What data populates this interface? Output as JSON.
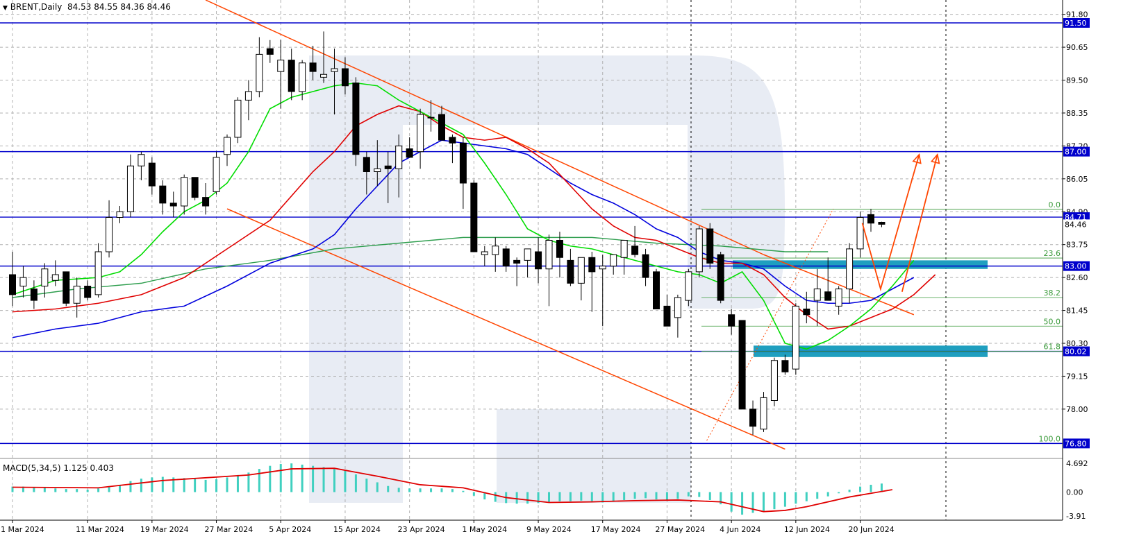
{
  "header": {
    "arrow": "▼",
    "symbol": "BRENT,Daily",
    "ohlc": "84.53 84.55 84.36 84.46"
  },
  "macd": {
    "label": "MACD(5,34,5) 1.125 0.403",
    "ticks": [
      "4.692",
      "0.00",
      "-3.91"
    ]
  },
  "price_ticks": [
    "91.80",
    "90.65",
    "89.50",
    "88.35",
    "87.20",
    "86.05",
    "84.90",
    "83.75",
    "82.60",
    "81.45",
    "80.30",
    "79.15",
    "78.00"
  ],
  "level_labels": [
    {
      "value": "91.50",
      "price": 91.5
    },
    {
      "value": "87.00",
      "price": 87.0
    },
    {
      "value": "84.71",
      "price": 84.71
    },
    {
      "value": "84.46",
      "price": 84.46
    },
    {
      "value": "83.00",
      "price": 83.0
    },
    {
      "value": "80.02",
      "price": 80.02
    },
    {
      "value": "76.80",
      "price": 76.8
    }
  ],
  "fib_labels": [
    {
      "text": "0.0",
      "price": 84.98
    },
    {
      "text": "23.6",
      "price": 83.28
    },
    {
      "text": "38.2",
      "price": 81.9
    },
    {
      "text": "50.0",
      "price": 80.9
    },
    {
      "text": "61.8",
      "price": 80.02
    },
    {
      "text": "100.0",
      "price": 76.8
    }
  ],
  "date_labels": [
    {
      "text": "1 Mar 2024",
      "idx": 0
    },
    {
      "text": "11 Mar 2024",
      "idx": 7
    },
    {
      "text": "19 Mar 2024",
      "idx": 13
    },
    {
      "text": "27 Mar 2024",
      "idx": 19
    },
    {
      "text": "5 Apr 2024",
      "idx": 25
    },
    {
      "text": "15 Apr 2024",
      "idx": 31
    },
    {
      "text": "23 Apr 2024",
      "idx": 37
    },
    {
      "text": "1 May 2024",
      "idx": 43
    },
    {
      "text": "9 May 2024",
      "idx": 49
    },
    {
      "text": "17 May 2024",
      "idx": 55
    },
    {
      "text": "27 May 2024",
      "idx": 61
    },
    {
      "text": "4 Jun 2024",
      "idx": 67
    },
    {
      "text": "12 Jun 2024",
      "idx": 73
    },
    {
      "text": "20 Jun 2024",
      "idx": 79
    }
  ],
  "colors": {
    "bull": "#ffffff",
    "bear": "#000000",
    "ma_green": "#00dd00",
    "ma_red": "#e00000",
    "ma_blue": "#0000dd",
    "ma_darkgreen": "#2e9e4e",
    "level": "#0000cc",
    "channel": "#ff4500",
    "zone": "#1f9fbf",
    "macd_hist": "#40d0c0",
    "macd_signal": "#e00000"
  },
  "chart_data": {
    "type": "candlestick",
    "ylim": [
      76.3,
      92.3
    ],
    "macd_ylim": [
      -4.6,
      5.4
    ],
    "candles": [
      [
        82.7,
        83.5,
        81.6,
        82.0
      ],
      [
        82.3,
        83.0,
        81.9,
        82.6
      ],
      [
        82.2,
        82.5,
        81.5,
        81.8
      ],
      [
        82.3,
        83.1,
        81.9,
        82.9
      ],
      [
        82.5,
        83.2,
        82.3,
        82.7
      ],
      [
        82.8,
        82.8,
        81.6,
        81.7
      ],
      [
        81.7,
        82.6,
        81.2,
        82.3
      ],
      [
        82.3,
        82.5,
        81.8,
        81.9
      ],
      [
        82.0,
        83.8,
        81.9,
        83.5
      ],
      [
        83.5,
        85.3,
        83.3,
        84.7
      ],
      [
        84.7,
        85.1,
        84.5,
        84.9
      ],
      [
        84.9,
        86.9,
        84.7,
        86.5
      ],
      [
        86.5,
        87.0,
        86.0,
        86.9
      ],
      [
        86.6,
        86.8,
        85.5,
        85.8
      ],
      [
        85.8,
        86.0,
        84.8,
        85.2
      ],
      [
        85.2,
        85.6,
        84.7,
        85.1
      ],
      [
        85.1,
        86.2,
        84.8,
        86.1
      ],
      [
        86.1,
        86.1,
        85.3,
        85.4
      ],
      [
        85.4,
        85.9,
        84.8,
        85.1
      ],
      [
        85.6,
        87.0,
        85.5,
        86.8
      ],
      [
        86.9,
        87.6,
        86.5,
        87.5
      ],
      [
        87.5,
        88.9,
        87.3,
        88.8
      ],
      [
        88.8,
        89.5,
        88.1,
        89.1
      ],
      [
        89.1,
        91.0,
        88.9,
        90.4
      ],
      [
        90.6,
        90.9,
        90.1,
        90.4
      ],
      [
        89.8,
        90.9,
        88.5,
        90.2
      ],
      [
        90.2,
        90.6,
        88.8,
        89.1
      ],
      [
        89.1,
        90.2,
        88.8,
        90.1
      ],
      [
        90.1,
        90.7,
        89.5,
        89.8
      ],
      [
        89.6,
        91.2,
        89.4,
        89.7
      ],
      [
        89.8,
        90.6,
        88.3,
        89.9
      ],
      [
        89.9,
        90.3,
        89.0,
        89.3
      ],
      [
        89.4,
        89.6,
        86.5,
        86.9
      ],
      [
        86.8,
        87.0,
        85.5,
        86.3
      ],
      [
        86.3,
        87.4,
        85.8,
        86.4
      ],
      [
        86.5,
        87.0,
        85.2,
        86.4
      ],
      [
        86.4,
        87.6,
        85.4,
        87.2
      ],
      [
        87.1,
        87.5,
        86.8,
        86.8
      ],
      [
        87.0,
        88.5,
        86.4,
        88.3
      ],
      [
        88.2,
        88.8,
        87.7,
        88.2
      ],
      [
        88.3,
        88.6,
        87.4,
        87.4
      ],
      [
        87.5,
        87.6,
        86.6,
        87.3
      ],
      [
        87.3,
        87.5,
        85.0,
        85.9
      ],
      [
        85.9,
        86.0,
        83.5,
        83.5
      ],
      [
        83.4,
        83.7,
        83.0,
        83.5
      ],
      [
        83.4,
        84.0,
        82.8,
        83.7
      ],
      [
        83.6,
        83.7,
        82.8,
        83.0
      ],
      [
        83.2,
        83.3,
        82.3,
        83.1
      ],
      [
        83.2,
        83.5,
        82.6,
        83.6
      ],
      [
        83.5,
        84.0,
        82.4,
        82.9
      ],
      [
        82.9,
        84.1,
        81.6,
        83.9
      ],
      [
        83.9,
        84.2,
        82.6,
        83.3
      ],
      [
        83.2,
        83.6,
        82.3,
        82.4
      ],
      [
        82.4,
        83.3,
        81.8,
        83.3
      ],
      [
        83.3,
        83.5,
        81.4,
        82.8
      ],
      [
        82.9,
        83.4,
        80.9,
        83.0
      ],
      [
        83.0,
        83.4,
        82.7,
        83.4
      ],
      [
        83.3,
        83.9,
        82.7,
        83.9
      ],
      [
        83.7,
        84.4,
        83.3,
        83.4
      ],
      [
        83.4,
        83.6,
        82.3,
        82.6
      ],
      [
        82.8,
        82.9,
        81.5,
        81.5
      ],
      [
        81.6,
        82.0,
        80.9,
        80.9
      ],
      [
        81.2,
        82.0,
        80.5,
        81.9
      ],
      [
        81.8,
        82.9,
        81.6,
        82.8
      ],
      [
        82.8,
        84.4,
        82.6,
        84.3
      ],
      [
        84.3,
        84.5,
        82.9,
        83.1
      ],
      [
        83.4,
        83.5,
        81.7,
        81.8
      ],
      [
        81.3,
        81.5,
        80.6,
        80.9
      ],
      [
        81.1,
        81.1,
        78.0,
        78.0
      ],
      [
        78.0,
        78.3,
        77.1,
        77.4
      ],
      [
        77.3,
        78.6,
        77.2,
        78.4
      ],
      [
        78.3,
        79.8,
        78.1,
        79.7
      ],
      [
        79.7,
        79.9,
        79.2,
        79.3
      ],
      [
        79.4,
        81.7,
        79.2,
        81.6
      ],
      [
        81.5,
        82.1,
        81.0,
        81.3
      ],
      [
        81.8,
        82.9,
        80.9,
        82.2
      ],
      [
        82.1,
        83.3,
        81.8,
        81.8
      ],
      [
        81.6,
        82.3,
        81.3,
        82.2
      ],
      [
        82.2,
        83.8,
        81.7,
        83.6
      ],
      [
        83.6,
        84.9,
        83.3,
        84.7
      ],
      [
        84.8,
        85.0,
        84.2,
        84.5
      ],
      [
        84.53,
        84.55,
        84.36,
        84.46
      ]
    ],
    "ma_green": [
      [
        0,
        82.0
      ],
      [
        4,
        82.5
      ],
      [
        8,
        82.6
      ],
      [
        10,
        82.8
      ],
      [
        12,
        83.4
      ],
      [
        14,
        84.2
      ],
      [
        16,
        84.9
      ],
      [
        18,
        85.3
      ],
      [
        20,
        85.9
      ],
      [
        22,
        87.0
      ],
      [
        24,
        88.5
      ],
      [
        26,
        88.9
      ],
      [
        28,
        89.1
      ],
      [
        30,
        89.3
      ],
      [
        32,
        89.4
      ],
      [
        34,
        89.3
      ],
      [
        36,
        88.8
      ],
      [
        38,
        88.4
      ],
      [
        40,
        88.0
      ],
      [
        42,
        87.6
      ],
      [
        44,
        86.6
      ],
      [
        46,
        85.5
      ],
      [
        48,
        84.3
      ],
      [
        50,
        83.9
      ],
      [
        52,
        83.7
      ],
      [
        54,
        83.6
      ],
      [
        56,
        83.4
      ],
      [
        58,
        83.2
      ],
      [
        60,
        83.0
      ],
      [
        62,
        82.8
      ],
      [
        64,
        82.7
      ],
      [
        66,
        82.4
      ],
      [
        68,
        82.8
      ],
      [
        70,
        81.8
      ],
      [
        72,
        80.3
      ],
      [
        74,
        80.1
      ],
      [
        76,
        80.4
      ],
      [
        78,
        80.9
      ],
      [
        80,
        81.5
      ],
      [
        82,
        82.3
      ],
      [
        84,
        83.2
      ]
    ],
    "ma_red": [
      [
        0,
        81.4
      ],
      [
        4,
        81.5
      ],
      [
        8,
        81.7
      ],
      [
        12,
        82.0
      ],
      [
        16,
        82.6
      ],
      [
        20,
        83.6
      ],
      [
        24,
        84.6
      ],
      [
        28,
        86.3
      ],
      [
        30,
        87.0
      ],
      [
        32,
        87.9
      ],
      [
        34,
        88.3
      ],
      [
        36,
        88.6
      ],
      [
        38,
        88.4
      ],
      [
        40,
        87.9
      ],
      [
        42,
        87.5
      ],
      [
        44,
        87.4
      ],
      [
        46,
        87.5
      ],
      [
        48,
        87.1
      ],
      [
        50,
        86.6
      ],
      [
        52,
        85.8
      ],
      [
        54,
        85.0
      ],
      [
        56,
        84.4
      ],
      [
        58,
        84.0
      ],
      [
        60,
        83.9
      ],
      [
        62,
        83.6
      ],
      [
        64,
        83.3
      ],
      [
        66,
        83.1
      ],
      [
        68,
        83.1
      ],
      [
        70,
        82.7
      ],
      [
        72,
        81.9
      ],
      [
        74,
        81.3
      ],
      [
        76,
        80.8
      ],
      [
        78,
        80.9
      ],
      [
        80,
        81.2
      ],
      [
        82,
        81.5
      ],
      [
        84,
        82.0
      ],
      [
        86,
        82.7
      ]
    ],
    "ma_blue": [
      [
        0,
        80.5
      ],
      [
        4,
        80.8
      ],
      [
        8,
        81.0
      ],
      [
        12,
        81.4
      ],
      [
        16,
        81.6
      ],
      [
        20,
        82.3
      ],
      [
        24,
        83.1
      ],
      [
        28,
        83.6
      ],
      [
        30,
        84.1
      ],
      [
        32,
        85.0
      ],
      [
        34,
        85.8
      ],
      [
        36,
        86.6
      ],
      [
        38,
        87.0
      ],
      [
        40,
        87.4
      ],
      [
        42,
        87.3
      ],
      [
        44,
        87.2
      ],
      [
        46,
        87.1
      ],
      [
        48,
        86.9
      ],
      [
        50,
        86.4
      ],
      [
        52,
        85.9
      ],
      [
        54,
        85.5
      ],
      [
        56,
        85.2
      ],
      [
        58,
        84.8
      ],
      [
        60,
        84.3
      ],
      [
        62,
        84.0
      ],
      [
        64,
        83.5
      ],
      [
        66,
        83.2
      ],
      [
        68,
        83.1
      ],
      [
        70,
        82.9
      ],
      [
        72,
        82.3
      ],
      [
        74,
        81.8
      ],
      [
        76,
        81.7
      ],
      [
        78,
        81.7
      ],
      [
        80,
        81.8
      ],
      [
        82,
        82.2
      ],
      [
        84,
        82.6
      ]
    ],
    "ma_darkgreen": [
      [
        0,
        81.9
      ],
      [
        6,
        82.2
      ],
      [
        12,
        82.4
      ],
      [
        18,
        82.9
      ],
      [
        24,
        83.2
      ],
      [
        30,
        83.6
      ],
      [
        36,
        83.8
      ],
      [
        42,
        84.0
      ],
      [
        48,
        84.0
      ],
      [
        54,
        84.0
      ],
      [
        60,
        83.8
      ],
      [
        66,
        83.7
      ],
      [
        72,
        83.5
      ],
      [
        76,
        83.5
      ]
    ],
    "levels": [
      91.5,
      87.0,
      84.71,
      83.0,
      80.02,
      76.8
    ],
    "channel_upper": [
      [
        18,
        92.3
      ],
      [
        70,
        83.4
      ]
    ],
    "channel_upper_ext": [
      [
        70,
        83.4
      ],
      [
        84,
        81.3
      ]
    ],
    "channel_lower": [
      [
        20,
        85.0
      ],
      [
        72,
        76.6
      ]
    ],
    "fib_lines": [
      84.98,
      83.28,
      81.9,
      80.9,
      80.02
    ],
    "zones": [
      [
        83.2,
        82.9
      ],
      [
        80.22,
        79.82
      ]
    ],
    "forecast_arrows": [
      [
        [
          79.2,
          84.5
        ],
        [
          80.9,
          82.2
        ],
        [
          84.5,
          86.9
        ]
      ],
      [
        [
          82.9,
          82.1
        ],
        [
          86.2,
          86.9
        ]
      ]
    ],
    "macd_hist": [
      0.9,
      0.9,
      0.8,
      0.7,
      0.6,
      0.5,
      0.5,
      0.4,
      0.6,
      0.9,
      1.2,
      1.8,
      2.2,
      2.4,
      2.5,
      2.4,
      2.3,
      2.2,
      2.0,
      2.1,
      2.4,
      2.8,
      3.2,
      3.8,
      4.3,
      4.6,
      4.7,
      4.5,
      4.3,
      4.1,
      3.8,
      3.5,
      2.9,
      2.2,
      1.6,
      1.0,
      0.7,
      0.6,
      0.6,
      0.6,
      0.6,
      0.5,
      0.2,
      -0.6,
      -1.2,
      -1.6,
      -1.8,
      -1.9,
      -1.9,
      -1.8,
      -1.6,
      -1.5,
      -1.5,
      -1.4,
      -1.5,
      -1.7,
      -1.6,
      -1.3,
      -1.1,
      -1.0,
      -1.2,
      -1.4,
      -1.1,
      -0.7,
      -0.8,
      -1.3,
      -2.0,
      -3.2,
      -3.7,
      -3.4,
      -3.1,
      -2.8,
      -2.4,
      -1.9,
      -1.5,
      -1.1,
      -0.7,
      -0.2,
      0.4,
      0.9,
      1.2,
      1.4
    ],
    "macd_signal": [
      [
        0,
        0.8
      ],
      [
        8,
        0.7
      ],
      [
        14,
        1.9
      ],
      [
        22,
        2.8
      ],
      [
        26,
        3.8
      ],
      [
        30,
        3.9
      ],
      [
        34,
        2.6
      ],
      [
        38,
        1.2
      ],
      [
        42,
        0.7
      ],
      [
        46,
        -0.9
      ],
      [
        50,
        -1.7
      ],
      [
        54,
        -1.6
      ],
      [
        58,
        -1.4
      ],
      [
        62,
        -1.3
      ],
      [
        66,
        -1.6
      ],
      [
        70,
        -3.2
      ],
      [
        72,
        -3.0
      ],
      [
        74,
        -2.4
      ],
      [
        78,
        -0.8
      ],
      [
        82,
        0.4
      ]
    ]
  }
}
